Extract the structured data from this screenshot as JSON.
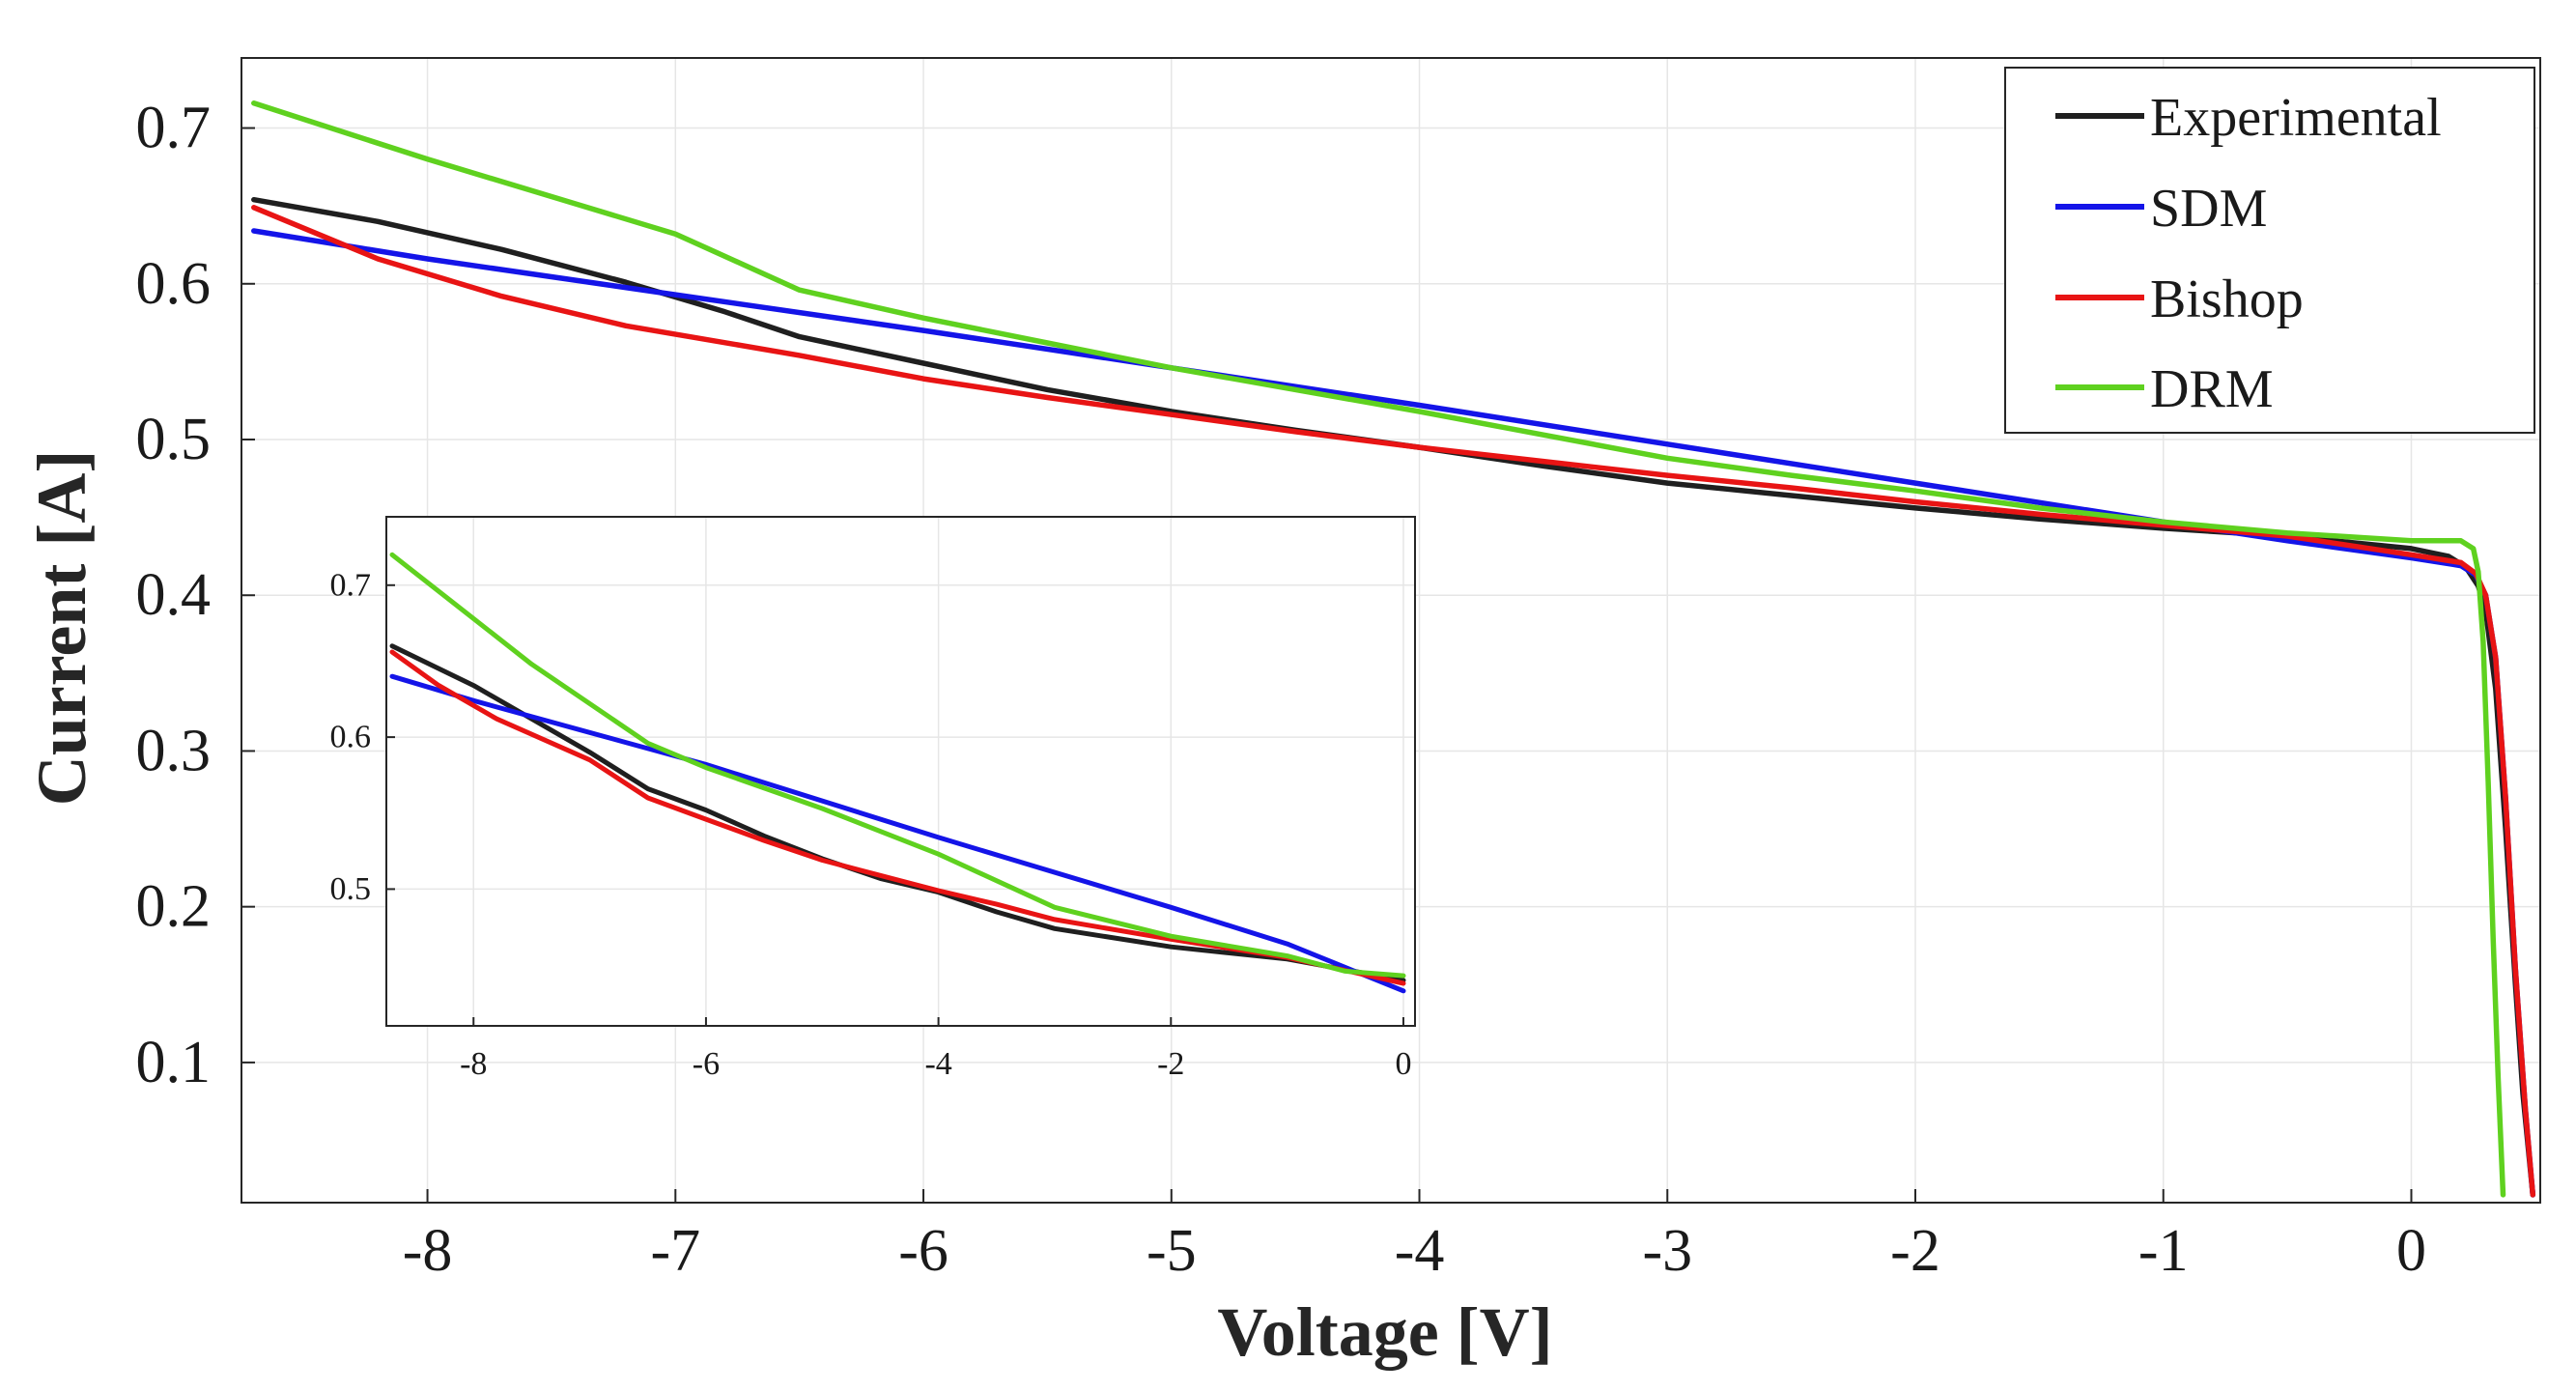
{
  "chart_data": [
    {
      "id": "main",
      "type": "line",
      "title": "",
      "xlabel": "Voltage [V]",
      "ylabel": "Current [A]",
      "xlim": [
        -8.75,
        0.52
      ],
      "ylim": [
        0.01,
        0.745
      ],
      "xticks": [
        -8,
        -7,
        -6,
        -5,
        -4,
        -3,
        -2,
        -1,
        0
      ],
      "yticks": [
        0.1,
        0.2,
        0.3,
        0.4,
        0.5,
        0.6,
        0.7
      ],
      "xtick_labels": [
        "-8",
        "-7",
        "-6",
        "-5",
        "-4",
        "-3",
        "-2",
        "-1",
        "0"
      ],
      "ytick_labels": [
        "0.1",
        "0.2",
        "0.3",
        "0.4",
        "0.5",
        "0.6",
        "0.7"
      ],
      "grid": true,
      "legend": "top-right",
      "series": [
        {
          "name": "Experimental",
          "color": "#1f1f1f",
          "points": [
            [
              -8.7,
              0.654
            ],
            [
              -8.2,
              0.64
            ],
            [
              -7.7,
              0.622
            ],
            [
              -7.2,
              0.601
            ],
            [
              -6.8,
              0.582
            ],
            [
              -6.5,
              0.566
            ],
            [
              -6.0,
              0.549
            ],
            [
              -5.5,
              0.532
            ],
            [
              -5.0,
              0.518
            ],
            [
              -4.5,
              0.506
            ],
            [
              -4.0,
              0.495
            ],
            [
              -3.5,
              0.483
            ],
            [
              -3.0,
              0.472
            ],
            [
              -2.5,
              0.464
            ],
            [
              -2.0,
              0.456
            ],
            [
              -1.5,
              0.449
            ],
            [
              -1.0,
              0.443
            ],
            [
              -0.5,
              0.438
            ],
            [
              0.0,
              0.43
            ],
            [
              0.15,
              0.425
            ],
            [
              0.22,
              0.418
            ],
            [
              0.27,
              0.406
            ],
            [
              0.3,
              0.39
            ],
            [
              0.34,
              0.34
            ],
            [
              0.38,
              0.25
            ],
            [
              0.42,
              0.15
            ],
            [
              0.45,
              0.08
            ],
            [
              0.49,
              0.015
            ]
          ]
        },
        {
          "name": "SDM",
          "color": "#1414e8",
          "points": [
            [
              -8.7,
              0.634
            ],
            [
              -8.0,
              0.616
            ],
            [
              -7.0,
              0.593
            ],
            [
              -6.0,
              0.57
            ],
            [
              -5.0,
              0.546
            ],
            [
              -4.0,
              0.522
            ],
            [
              -3.0,
              0.497
            ],
            [
              -2.0,
              0.472
            ],
            [
              -1.0,
              0.447
            ],
            [
              -0.5,
              0.435
            ],
            [
              0.0,
              0.424
            ],
            [
              0.2,
              0.419
            ],
            [
              0.26,
              0.413
            ],
            [
              0.3,
              0.4
            ],
            [
              0.34,
              0.36
            ],
            [
              0.38,
              0.27
            ],
            [
              0.42,
              0.16
            ],
            [
              0.46,
              0.07
            ],
            [
              0.49,
              0.015
            ]
          ]
        },
        {
          "name": "Bishop",
          "color": "#e81414",
          "points": [
            [
              -8.7,
              0.649
            ],
            [
              -8.2,
              0.616
            ],
            [
              -7.7,
              0.592
            ],
            [
              -7.2,
              0.573
            ],
            [
              -6.5,
              0.554
            ],
            [
              -6.0,
              0.539
            ],
            [
              -5.5,
              0.527
            ],
            [
              -5.0,
              0.516
            ],
            [
              -4.5,
              0.505
            ],
            [
              -4.0,
              0.495
            ],
            [
              -3.5,
              0.486
            ],
            [
              -3.0,
              0.477
            ],
            [
              -2.5,
              0.469
            ],
            [
              -2.0,
              0.46
            ],
            [
              -1.5,
              0.452
            ],
            [
              -1.0,
              0.445
            ],
            [
              -0.5,
              0.438
            ],
            [
              0.0,
              0.426
            ],
            [
              0.2,
              0.421
            ],
            [
              0.26,
              0.414
            ],
            [
              0.3,
              0.4
            ],
            [
              0.34,
              0.36
            ],
            [
              0.38,
              0.27
            ],
            [
              0.42,
              0.16
            ],
            [
              0.46,
              0.07
            ],
            [
              0.49,
              0.015
            ]
          ]
        },
        {
          "name": "DRM",
          "color": "#5fd11f",
          "points": [
            [
              -8.7,
              0.716
            ],
            [
              -8.0,
              0.68
            ],
            [
              -7.0,
              0.632
            ],
            [
              -6.5,
              0.596
            ],
            [
              -6.0,
              0.578
            ],
            [
              -5.5,
              0.562
            ],
            [
              -5.0,
              0.546
            ],
            [
              -4.5,
              0.532
            ],
            [
              -4.0,
              0.518
            ],
            [
              -3.5,
              0.503
            ],
            [
              -3.0,
              0.488
            ],
            [
              -2.5,
              0.477
            ],
            [
              -2.0,
              0.467
            ],
            [
              -1.5,
              0.456
            ],
            [
              -1.0,
              0.447
            ],
            [
              -0.5,
              0.44
            ],
            [
              0.0,
              0.435
            ],
            [
              0.2,
              0.435
            ],
            [
              0.25,
              0.43
            ],
            [
              0.27,
              0.415
            ],
            [
              0.29,
              0.37
            ],
            [
              0.31,
              0.28
            ],
            [
              0.33,
              0.18
            ],
            [
              0.35,
              0.09
            ],
            [
              0.37,
              0.015
            ]
          ]
        }
      ]
    },
    {
      "id": "inset",
      "type": "line",
      "title": "",
      "xlabel": "",
      "ylabel": "",
      "xlim": [
        -8.75,
        0.1
      ],
      "ylim": [
        0.41,
        0.745
      ],
      "xticks": [
        -8,
        -6,
        -4,
        -2,
        0
      ],
      "yticks": [
        0.5,
        0.6,
        0.7
      ],
      "xtick_labels": [
        "-8",
        "-6",
        "-4",
        "-2",
        "0"
      ],
      "ytick_labels": [
        "0.5",
        "0.6",
        "0.7"
      ],
      "grid": true,
      "series": [
        {
          "name": "Experimental",
          "color": "#1f1f1f",
          "points": [
            [
              -8.7,
              0.66
            ],
            [
              -8.0,
              0.634
            ],
            [
              -7.0,
              0.59
            ],
            [
              -6.5,
              0.566
            ],
            [
              -6.0,
              0.552
            ],
            [
              -5.5,
              0.535
            ],
            [
              -5.0,
              0.52
            ],
            [
              -4.5,
              0.507
            ],
            [
              -4.0,
              0.498
            ],
            [
              -3.5,
              0.485
            ],
            [
              -3.0,
              0.474
            ],
            [
              -2.0,
              0.462
            ],
            [
              -1.0,
              0.454
            ],
            [
              0.0,
              0.44
            ]
          ]
        },
        {
          "name": "SDM",
          "color": "#1414e8",
          "points": [
            [
              -8.7,
              0.64
            ],
            [
              -8.0,
              0.624
            ],
            [
              -6.0,
              0.582
            ],
            [
              -4.0,
              0.534
            ],
            [
              -2.0,
              0.488
            ],
            [
              -1.0,
              0.464
            ],
            [
              0.0,
              0.433
            ]
          ]
        },
        {
          "name": "Bishop",
          "color": "#e81414",
          "points": [
            [
              -8.7,
              0.656
            ],
            [
              -8.3,
              0.634
            ],
            [
              -7.8,
              0.612
            ],
            [
              -7.0,
              0.585
            ],
            [
              -6.5,
              0.56
            ],
            [
              -6.0,
              0.546
            ],
            [
              -5.5,
              0.532
            ],
            [
              -5.0,
              0.519
            ],
            [
              -4.5,
              0.509
            ],
            [
              -4.0,
              0.499
            ],
            [
              -3.5,
              0.49
            ],
            [
              -3.0,
              0.48
            ],
            [
              -2.0,
              0.467
            ],
            [
              -1.0,
              0.455
            ],
            [
              0.0,
              0.438
            ]
          ]
        },
        {
          "name": "DRM",
          "color": "#5fd11f",
          "points": [
            [
              -8.7,
              0.72
            ],
            [
              -7.5,
              0.648
            ],
            [
              -6.5,
              0.596
            ],
            [
              -6.0,
              0.58
            ],
            [
              -5.0,
              0.553
            ],
            [
              -4.0,
              0.523
            ],
            [
              -3.0,
              0.488
            ],
            [
              -2.0,
              0.469
            ],
            [
              -1.0,
              0.456
            ],
            [
              -0.5,
              0.446
            ],
            [
              0.0,
              0.443
            ]
          ]
        }
      ]
    }
  ]
}
